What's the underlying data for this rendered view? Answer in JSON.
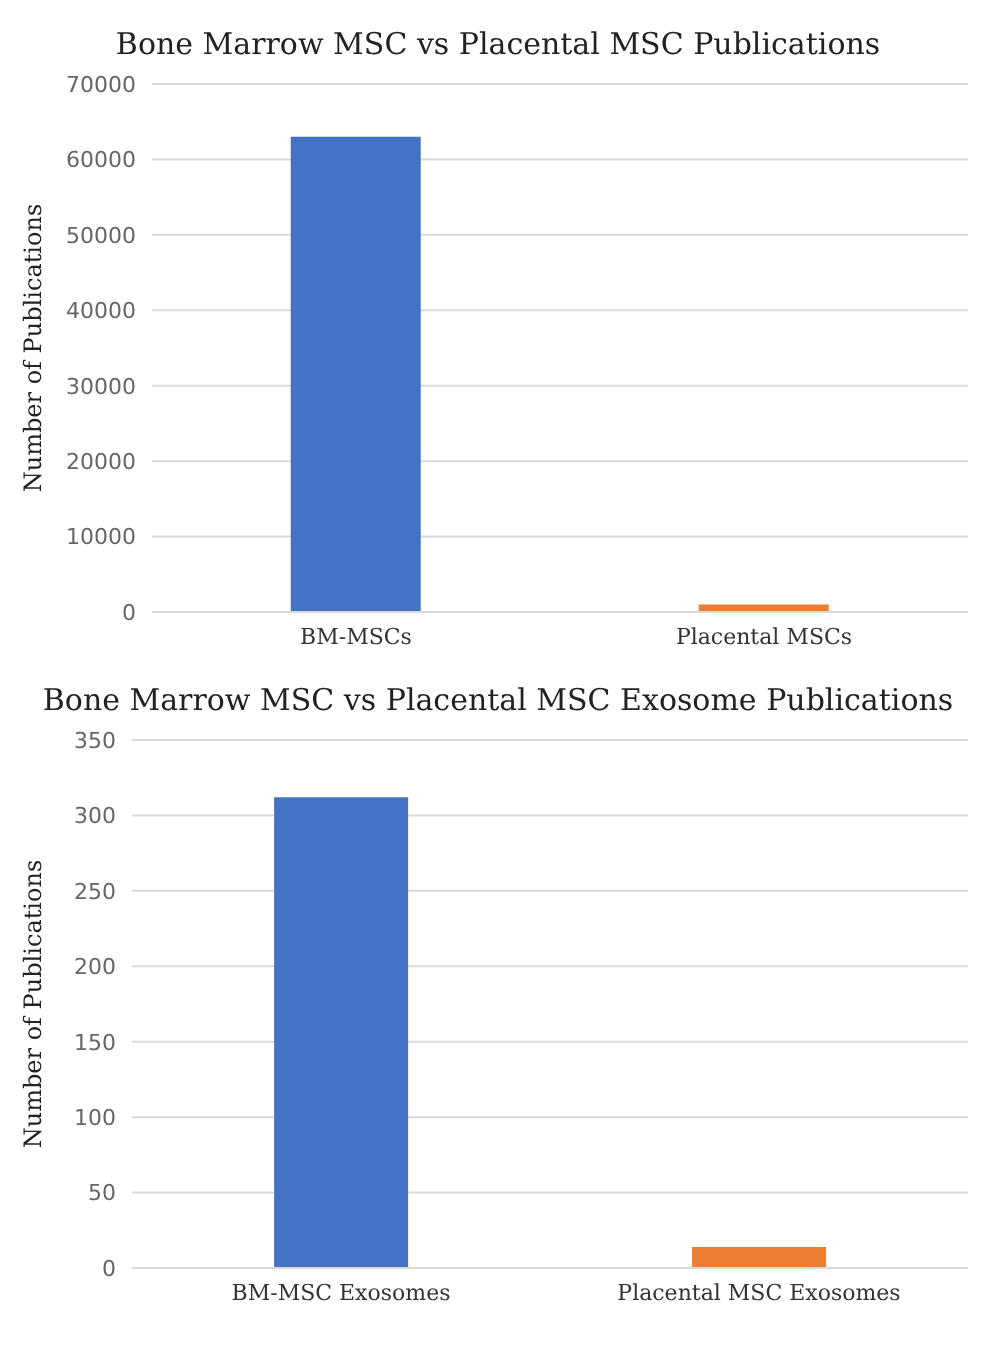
{
  "chart_data": [
    {
      "type": "bar",
      "title": "Bone Marrow MSC vs Placental MSC Publications",
      "ylabel": "Number of Publications",
      "categories": [
        "BM-MSCs",
        "Placental MSCs"
      ],
      "values": [
        63000,
        1000
      ],
      "colors": [
        "#4472c4",
        "#ed7d31"
      ],
      "ylim": [
        0,
        70000
      ],
      "yticks": [
        0,
        10000,
        20000,
        30000,
        40000,
        50000,
        60000,
        70000
      ],
      "grid": "y"
    },
    {
      "type": "bar",
      "title": "Bone Marrow MSC vs Placental MSC Exosome Publications",
      "ylabel": "Number of Publications",
      "categories": [
        "BM-MSC Exosomes",
        "Placental MSC Exosomes"
      ],
      "values": [
        312,
        14
      ],
      "colors": [
        "#4472c4",
        "#ed7d31"
      ],
      "ylim": [
        0,
        350
      ],
      "yticks": [
        0,
        50,
        100,
        150,
        200,
        250,
        300,
        350
      ],
      "grid": "y"
    }
  ]
}
